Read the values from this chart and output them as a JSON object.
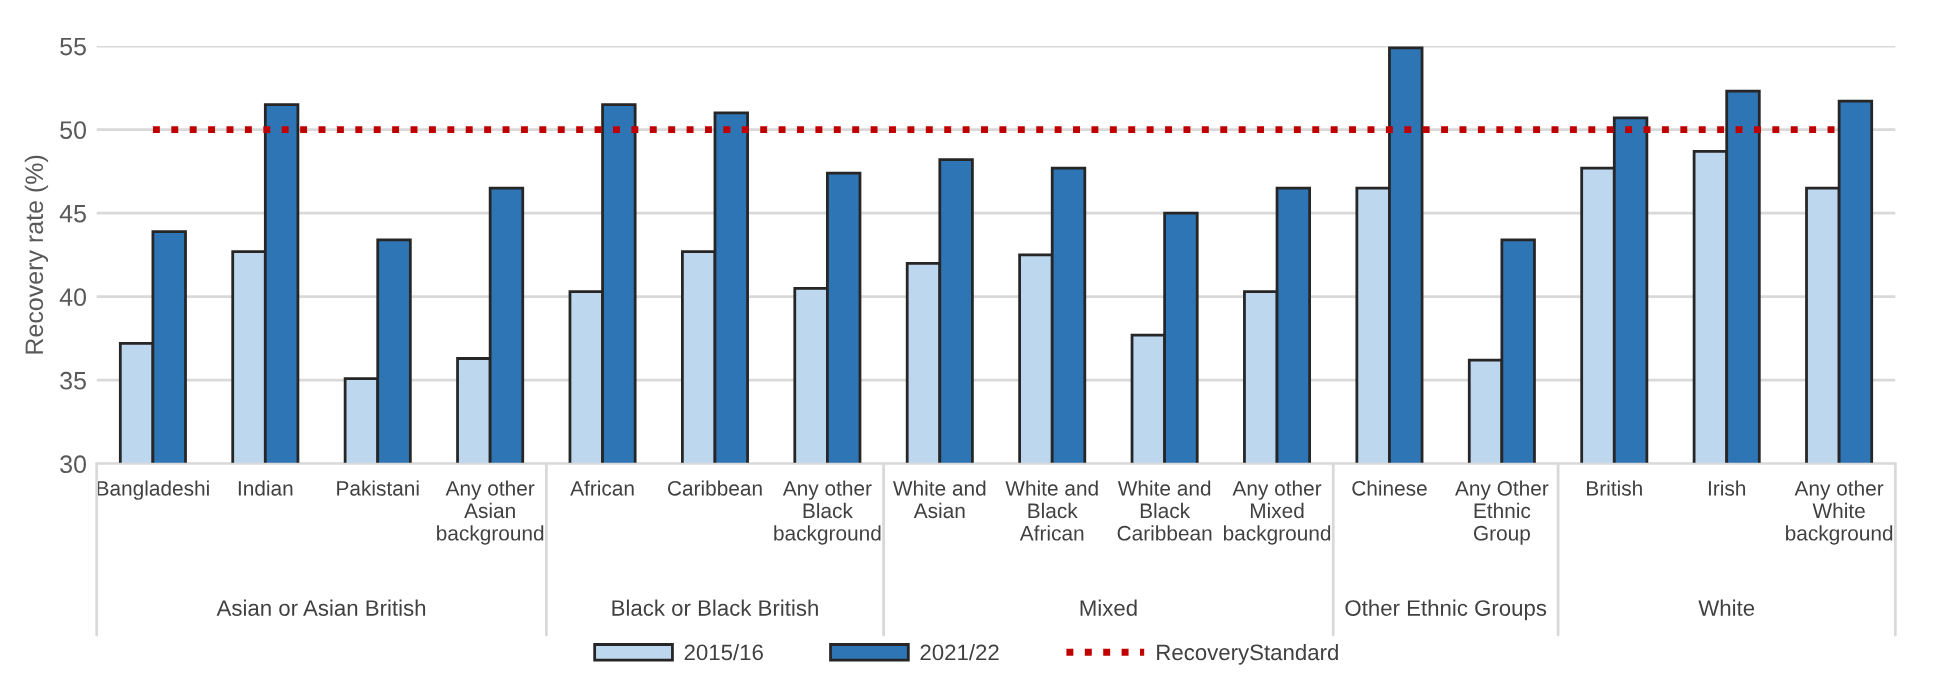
{
  "chart_data": {
    "type": "bar",
    "ylabel": "Recovery rate (%)",
    "categories": [
      "Bangladeshi",
      "Indian",
      "Pakistani",
      "Any other Asian background",
      "African",
      "Caribbean",
      "Any other Black background",
      "White and Asian",
      "White and Black African",
      "White and Black Caribbean",
      "Any other Mixed background",
      "Chinese",
      "Any Other Ethnic Group",
      "British",
      "Irish",
      "Any other White background"
    ],
    "series": [
      {
        "name": "2015/16",
        "color": "#bdd7ee",
        "values": [
          37.2,
          42.7,
          35.1,
          36.3,
          40.3,
          42.7,
          40.5,
          42.0,
          42.5,
          37.7,
          40.3,
          46.5,
          36.2,
          47.7,
          48.7,
          46.5
        ]
      },
      {
        "name": "2021/22",
        "color": "#2e75b6",
        "values": [
          43.9,
          51.5,
          43.4,
          46.5,
          51.5,
          51.0,
          47.4,
          48.2,
          47.7,
          45.0,
          46.5,
          54.9,
          43.4,
          50.7,
          52.3,
          51.7
        ]
      },
      {
        "name": "RecoveryStandard",
        "type": "line",
        "color": "#c00000",
        "line_style": "dotted",
        "values": [
          50,
          50,
          50,
          50,
          50,
          50,
          50,
          50,
          50,
          50,
          50,
          50,
          50,
          50,
          50,
          50
        ]
      }
    ],
    "annotations": [
      "Asian or Asian British",
      "Black or Black British",
      "Mixed",
      "Other Ethnic Groups",
      "White"
    ],
    "ylim": [
      30,
      55
    ],
    "yticks": [
      30,
      35,
      40,
      45,
      50,
      55
    ],
    "grid": "y",
    "legend": "bottom"
  }
}
